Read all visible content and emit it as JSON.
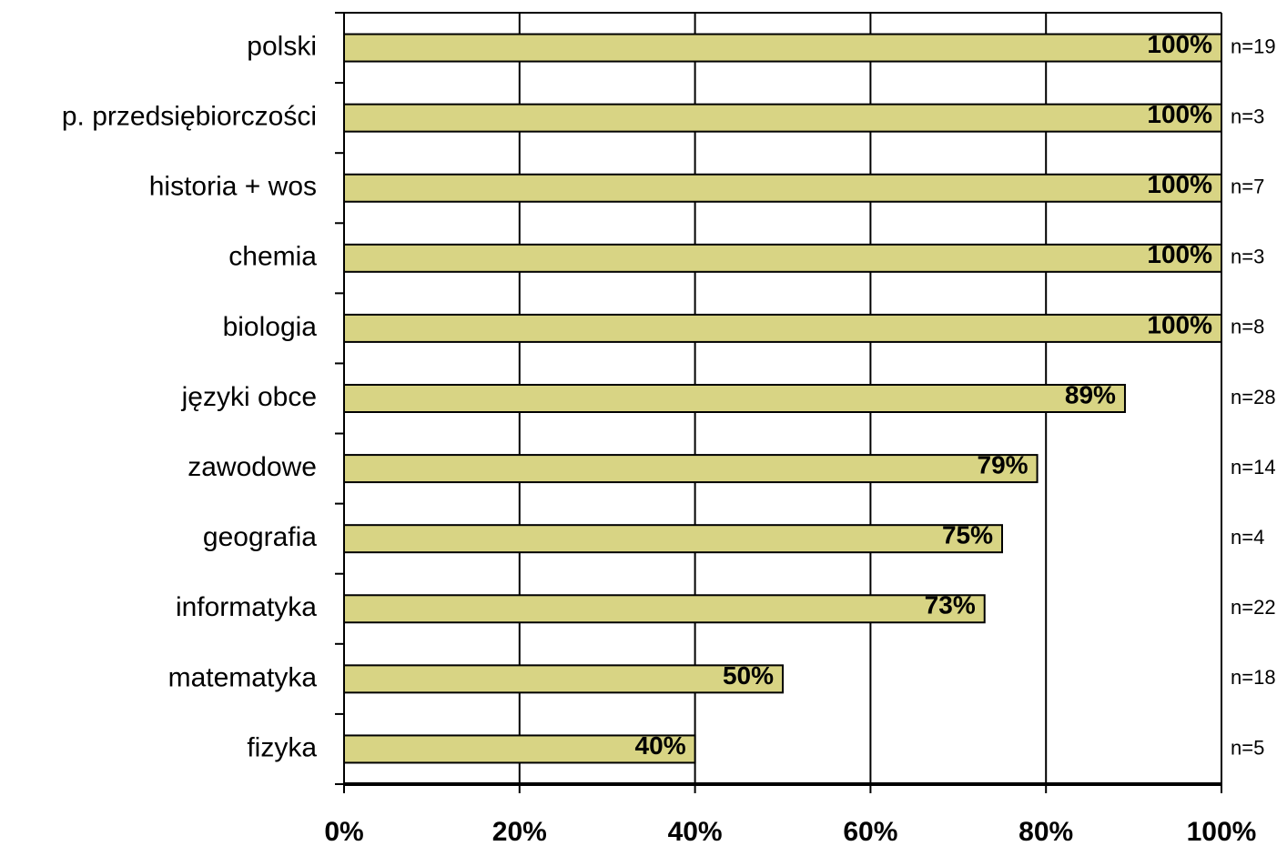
{
  "chart_data": {
    "type": "barh",
    "categories": [
      "polski",
      "p. przedsiębiorczości",
      "historia + wos",
      "chemia",
      "biologia",
      "języki obce",
      "zawodowe",
      "geografia",
      "informatyka",
      "matematyka",
      "fizyka"
    ],
    "values": [
      100,
      100,
      100,
      100,
      100,
      89,
      79,
      75,
      73,
      50,
      40
    ],
    "value_labels": [
      "100%",
      "100%",
      "100%",
      "100%",
      "100%",
      "89%",
      "79%",
      "75%",
      "73%",
      "50%",
      "40%"
    ],
    "annotations": [
      "n=19",
      "n=3",
      "n=7",
      "n=3",
      "n=8",
      "n=28",
      "n=14",
      "n=4",
      "n=22",
      "n=18",
      "n=5"
    ],
    "color": "#d8d484",
    "xlim": [
      0,
      100
    ],
    "xticks": [
      {
        "value": 0,
        "label": "0%"
      },
      {
        "value": 20,
        "label": "20%"
      },
      {
        "value": 40,
        "label": "40%"
      },
      {
        "value": 60,
        "label": "60%"
      },
      {
        "value": 80,
        "label": "80%"
      },
      {
        "value": 100,
        "label": "100%"
      }
    ],
    "grid": true
  }
}
